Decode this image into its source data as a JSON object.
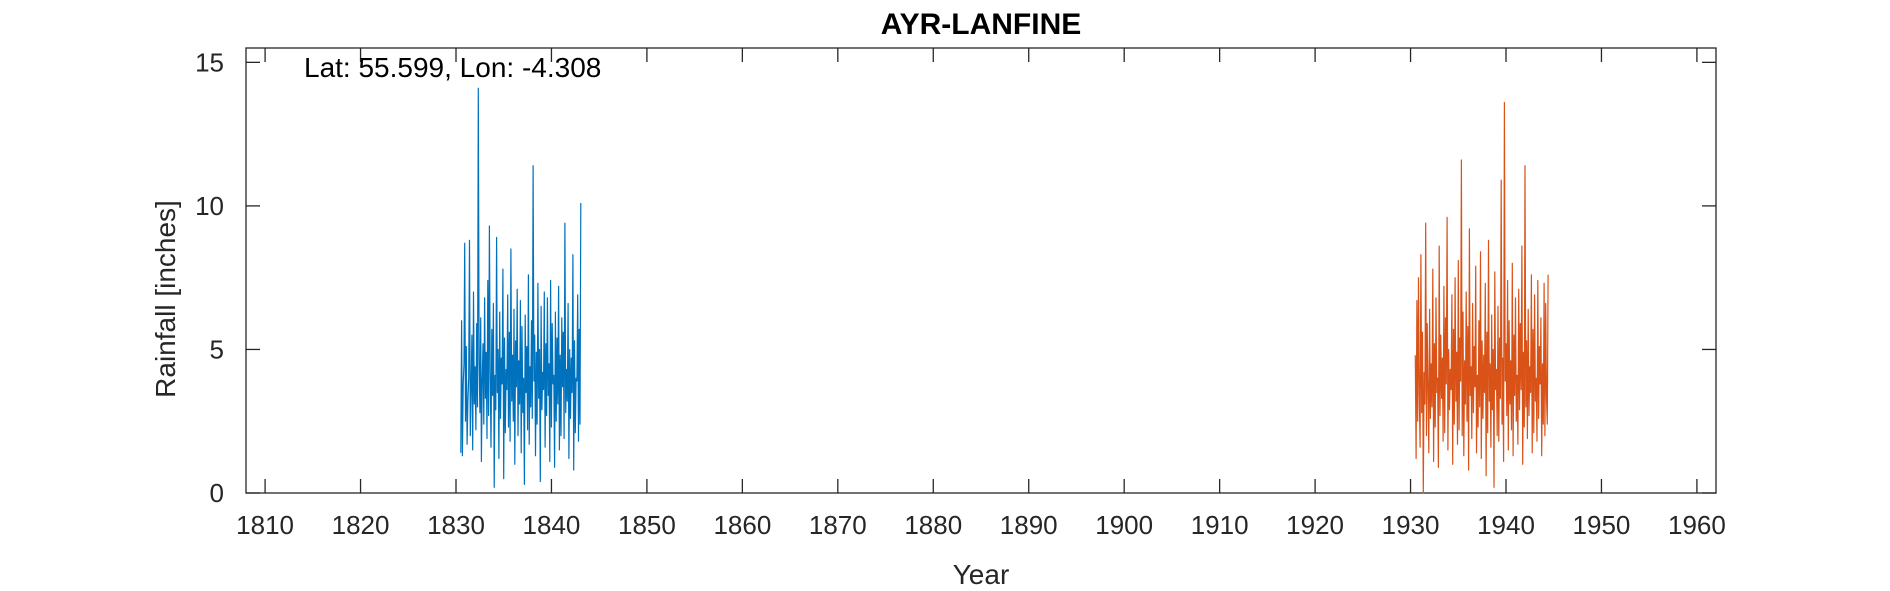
{
  "chart_data": {
    "type": "line",
    "title": "AYR-LANFINE",
    "xlabel": "Year",
    "ylabel": "Rainfall [inches]",
    "annotation": "Lat: 55.599, Lon: -4.308",
    "xlim": [
      1808,
      1962
    ],
    "ylim": [
      0,
      15.5
    ],
    "xticks": [
      1810,
      1820,
      1830,
      1840,
      1850,
      1860,
      1870,
      1880,
      1890,
      1900,
      1910,
      1920,
      1930,
      1940,
      1950,
      1960
    ],
    "yticks": [
      0,
      5,
      10,
      15
    ],
    "grid": false,
    "legend": "none",
    "series": [
      {
        "color": "#0072BD",
        "x_start": 1830.5,
        "x_step": 0.0833,
        "values": [
          1.4,
          6.0,
          1.3,
          3.8,
          4.5,
          8.7,
          2.5,
          5.1,
          1.7,
          3.2,
          4.0,
          8.8,
          2.0,
          3.6,
          5.5,
          1.5,
          7.0,
          3.1,
          4.4,
          2.2,
          5.9,
          3.0,
          14.1,
          4.6,
          2.8,
          6.1,
          1.1,
          3.9,
          5.2,
          2.4,
          6.8,
          3.3,
          4.9,
          1.9,
          7.4,
          2.7,
          9.3,
          4.2,
          1.6,
          5.7,
          3.4,
          6.6,
          0.2,
          4.1,
          2.9,
          8.9,
          3.5,
          5.0,
          1.2,
          6.3,
          2.6,
          4.7,
          3.8,
          7.8,
          0.5,
          5.4,
          2.1,
          4.3,
          3.6,
          6.9,
          2.3,
          5.6,
          1.8,
          8.5,
          3.2,
          4.8,
          2.5,
          6.4,
          1.0,
          5.3,
          3.7,
          7.1,
          2.0,
          4.6,
          3.1,
          6.7,
          1.4,
          5.8,
          2.8,
          4.0,
          0.3,
          6.2,
          3.5,
          5.1,
          2.2,
          7.6,
          1.7,
          4.4,
          3.0,
          6.0,
          2.6,
          11.4,
          3.9,
          5.5,
          1.3,
          4.9,
          2.4,
          7.3,
          3.3,
          5.0,
          0.4,
          6.5,
          2.9,
          4.2,
          3.6,
          7.0,
          1.6,
          5.2,
          2.7,
          6.8,
          3.4,
          4.5,
          1.1,
          7.4,
          2.3,
          5.9,
          3.8,
          4.1,
          0.9,
          6.3,
          2.5,
          5.4,
          3.1,
          7.2,
          1.5,
          4.8,
          2.0,
          6.1,
          3.7,
          5.6,
          1.9,
          9.4,
          2.8,
          4.3,
          3.2,
          6.6,
          1.2,
          5.0,
          2.6,
          4.7,
          3.5,
          8.3,
          0.8,
          5.3,
          2.1,
          4.0,
          3.9,
          6.9,
          1.8,
          5.7,
          2.4,
          10.1
        ]
      },
      {
        "color": "#D95319",
        "x_start": 1930.5,
        "x_step": 0.0833,
        "values": [
          4.8,
          1.2,
          6.7,
          2.5,
          7.5,
          3.4,
          1.6,
          8.3,
          2.8,
          5.6,
          0.0,
          4.2,
          3.1,
          9.4,
          2.0,
          5.9,
          3.7,
          1.4,
          6.4,
          2.6,
          4.5,
          3.0,
          7.8,
          1.1,
          5.2,
          2.3,
          6.8,
          3.5,
          4.0,
          0.9,
          8.6,
          2.7,
          5.5,
          3.3,
          4.7,
          1.8,
          7.2,
          2.1,
          6.1,
          3.8,
          9.6,
          1.5,
          5.0,
          2.9,
          4.3,
          3.6,
          6.9,
          1.0,
          5.7,
          2.4,
          7.5,
          3.2,
          4.9,
          1.7,
          8.1,
          2.2,
          5.4,
          3.9,
          11.6,
          2.0,
          6.3,
          1.3,
          4.6,
          3.1,
          7.0,
          2.5,
          5.8,
          0.8,
          9.2,
          3.4,
          4.4,
          1.9,
          6.6,
          2.8,
          5.1,
          3.7,
          7.9,
          1.4,
          4.1,
          2.3,
          6.0,
          3.0,
          8.4,
          1.2,
          5.3,
          2.6,
          4.8,
          3.5,
          7.3,
          0.6,
          5.6,
          2.1,
          8.8,
          3.2,
          4.5,
          1.6,
          6.2,
          2.9,
          5.0,
          0.2,
          7.7,
          3.6,
          4.3,
          2.0,
          6.5,
          1.8,
          5.4,
          3.3,
          10.9,
          2.4,
          4.7,
          1.1,
          13.6,
          3.9,
          5.2,
          2.7,
          7.4,
          1.5,
          6.0,
          3.1,
          4.6,
          2.2,
          8.0,
          1.3,
          5.5,
          3.4,
          6.8,
          2.5,
          4.1,
          1.7,
          7.1,
          2.9,
          5.9,
          3.6,
          8.6,
          1.0,
          4.9,
          2.3,
          11.4,
          3.0,
          5.3,
          1.9,
          6.4,
          2.7,
          4.4,
          3.5,
          7.6,
          1.4,
          5.7,
          2.1,
          6.9,
          3.2,
          4.0,
          1.8,
          7.4,
          2.6,
          5.1,
          3.8,
          6.1,
          1.3,
          4.5,
          2.4,
          7.3,
          2.0,
          6.6,
          3.3,
          2.4,
          7.6
        ]
      }
    ]
  }
}
